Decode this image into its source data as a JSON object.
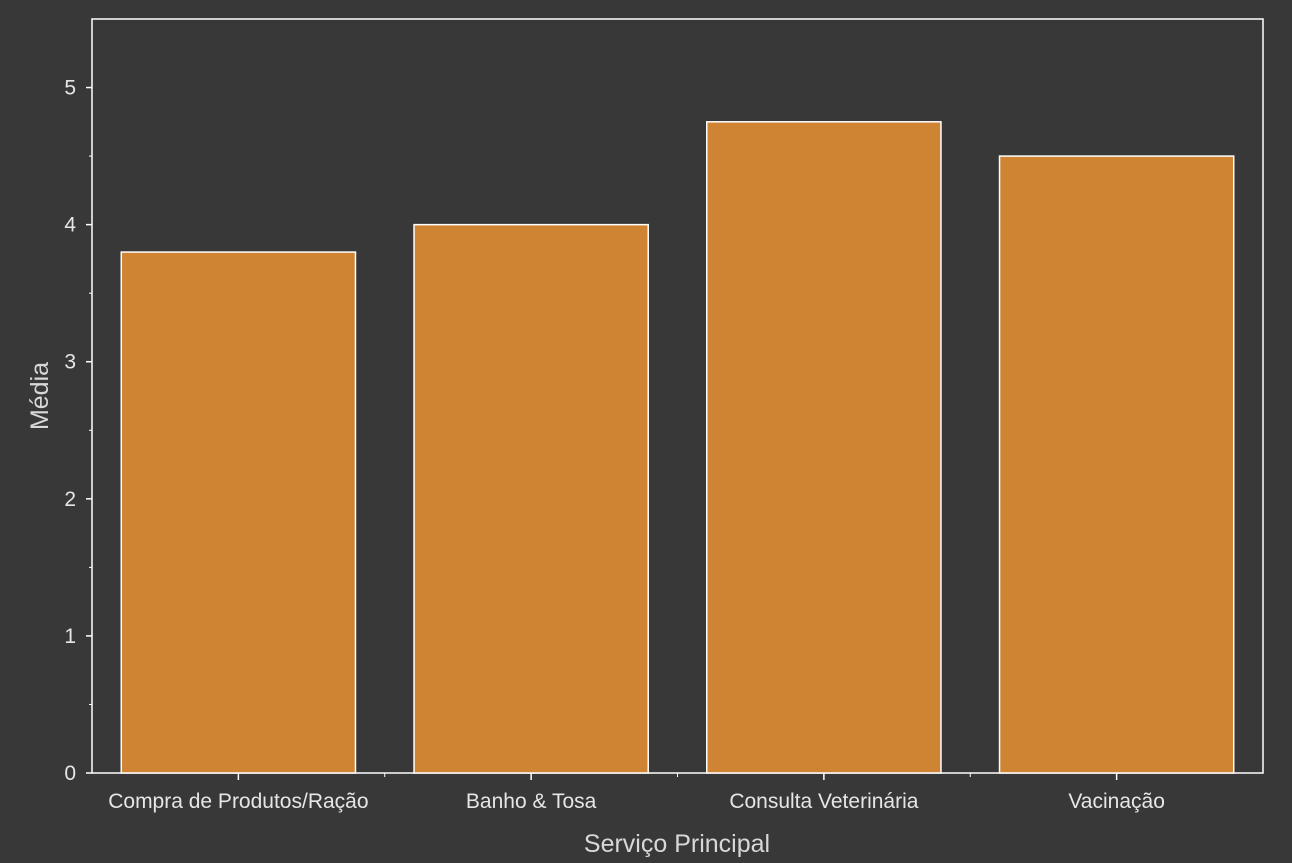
{
  "chart_data": {
    "type": "bar",
    "categories": [
      "Compra de Produtos/Ração",
      "Banho & Tosa",
      "Consulta Veterinária",
      "Vacinação"
    ],
    "values": [
      3.8,
      4.0,
      4.75,
      4.5
    ],
    "title": "",
    "xlabel": "Serviço Principal",
    "ylabel": "Média",
    "ylim": [
      0,
      5.5
    ],
    "yticks": [
      0,
      1,
      2,
      3,
      4,
      5
    ],
    "grid": false,
    "colors": {
      "background": "#383838",
      "bar_fill": "#cf8433",
      "bar_edge": "#ffffff",
      "axis": "#ffffff",
      "text": "#e6e6e6"
    }
  }
}
